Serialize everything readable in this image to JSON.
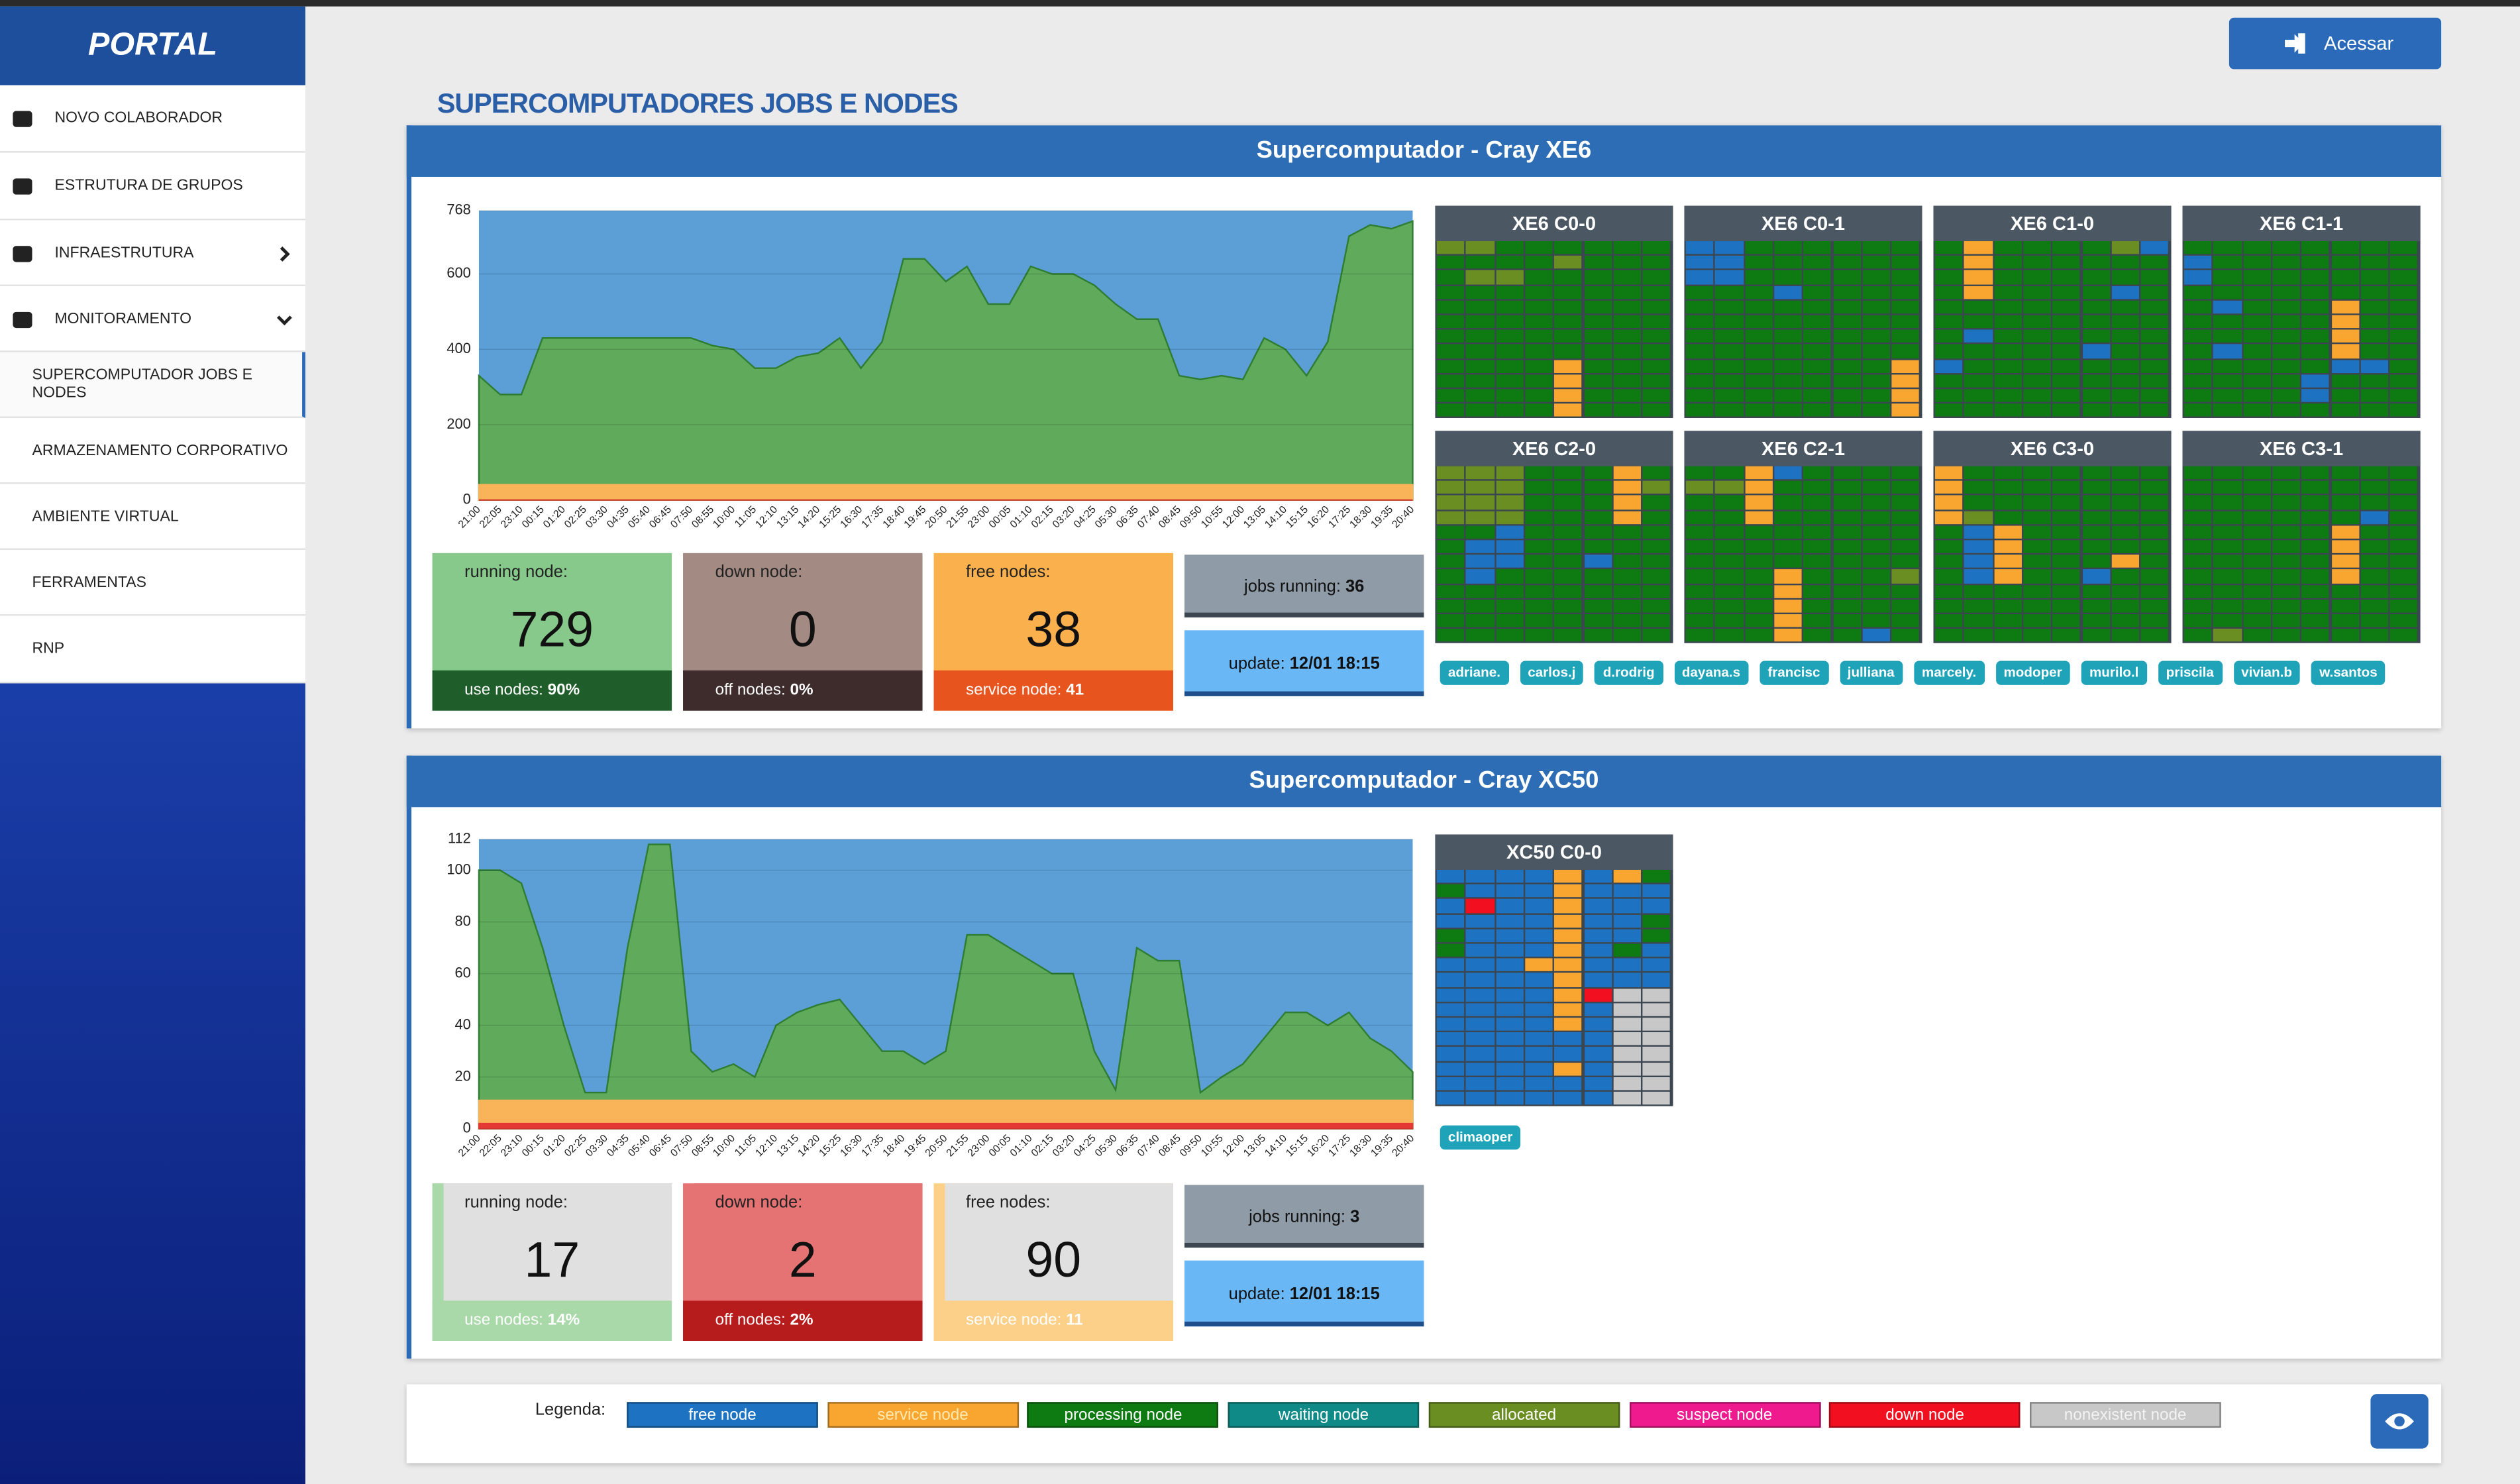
{
  "sidebar": {
    "brand": "PORTAL",
    "menu": [
      "NOVO COLABORADOR",
      "ESTRUTURA DE GRUPOS",
      "INFRAESTRUTURA",
      "MONITORAMENTO",
      "SUPERCOMPUTADOR JOBS E NODES",
      "ARMAZENAMENTO CORPORATIVO",
      "AMBIENTE VIRTUAL",
      "FERRAMENTAS",
      "RNP"
    ]
  },
  "header": {
    "button": "Acessar"
  },
  "page_title": "SUPERCOMPUTADORES JOBS E NODES",
  "panels": [
    {
      "title": "Supercomputador - Cray XE6",
      "chart": {
        "type": "area",
        "categories": [
          "21:00",
          "22:05",
          "23:10",
          "00:15",
          "01:20",
          "02:25",
          "03:30",
          "04:35",
          "05:40",
          "06:45",
          "07:50",
          "08:55",
          "10:00",
          "11:05",
          "12:10",
          "13:15",
          "14:20",
          "15:25",
          "16:30",
          "17:35",
          "18:40",
          "19:45",
          "20:50",
          "21:55",
          "23:00",
          "00:05",
          "01:10",
          "02:15",
          "03:20",
          "04:25",
          "05:30",
          "06:35",
          "07:40",
          "08:45",
          "09:50",
          "10:55",
          "12:00",
          "13:05",
          "14:10",
          "15:15",
          "16:20",
          "17:25",
          "18:30",
          "19:35",
          "20:40"
        ],
        "series": [
          {
            "color": "#5faa5b",
            "values": [
              330,
              280,
              280,
              430,
              430,
              430,
              430,
              430,
              430,
              430,
              430,
              410,
              400,
              350,
              350,
              380,
              390,
              430,
              350,
              420,
              640,
              640,
              580,
              620,
              520,
              520,
              620,
              600,
              600,
              570,
              520,
              480,
              480,
              330,
              320,
              330,
              320,
              430,
              400,
              330,
              420,
              700,
              730,
              720,
              740
            ]
          },
          {
            "color": "#f9b45a",
            "values": [
              41,
              41,
              41,
              41,
              41,
              41,
              41,
              41,
              41,
              41,
              41,
              41,
              41,
              41,
              41,
              41,
              41,
              41,
              41,
              41,
              41,
              41,
              41,
              41,
              41,
              41,
              41,
              41,
              41,
              41,
              41,
              41,
              41,
              41,
              41,
              41,
              41,
              41,
              41,
              41,
              41,
              41,
              41,
              41,
              41
            ]
          },
          {
            "color": "#e53935",
            "values": [
              0,
              0,
              0,
              0,
              0,
              0,
              0,
              0,
              0,
              0,
              0,
              0,
              0,
              0,
              0,
              0,
              0,
              0,
              0,
              0,
              0,
              0,
              0,
              0,
              0,
              0,
              0,
              0,
              0,
              0,
              0,
              0,
              0,
              0,
              0,
              0,
              0,
              0,
              0,
              0,
              0,
              0,
              0,
              0,
              0
            ]
          }
        ],
        "ylim": [
          0,
          768
        ],
        "yticks": [
          0,
          200,
          400,
          600,
          768
        ],
        "grid": true
      },
      "cards": [
        {
          "label": "running node:",
          "value": "729",
          "footer_label": "use nodes:",
          "footer_value": "90%"
        },
        {
          "label": "down node:",
          "value": "0",
          "footer_label": "off nodes:",
          "footer_value": "0%"
        },
        {
          "label": "free nodes:",
          "value": "38",
          "footer_label": "service node:",
          "footer_value": "41"
        }
      ],
      "jobs": {
        "label": "jobs running:",
        "value": "36"
      },
      "update": {
        "label": "update:",
        "value": "12/01 18:15"
      },
      "grids": [
        "XE6 C0-0",
        "XE6 C0-1",
        "XE6 C1-0",
        "XE6 C1-1",
        "XE6 C2-0",
        "XE6 C2-1",
        "XE6 C3-0",
        "XE6 C3-1"
      ],
      "users": [
        "adriane.",
        "carlos.j",
        "d.rodrig",
        "dayana.s",
        "francisc",
        "julliana",
        "marcely.",
        "modoper",
        "murilo.l",
        "priscila",
        "vivian.b",
        "w.santos"
      ]
    },
    {
      "title": "Supercomputador - Cray XC50",
      "chart": {
        "type": "area",
        "categories": [
          "21:00",
          "22:05",
          "23:10",
          "00:15",
          "01:20",
          "02:25",
          "03:30",
          "04:35",
          "05:40",
          "06:45",
          "07:50",
          "08:55",
          "10:00",
          "11:05",
          "12:10",
          "13:15",
          "14:20",
          "15:25",
          "16:30",
          "17:35",
          "18:40",
          "19:45",
          "20:50",
          "21:55",
          "23:00",
          "00:05",
          "01:10",
          "02:15",
          "03:20",
          "04:25",
          "05:30",
          "06:35",
          "07:40",
          "08:45",
          "09:50",
          "10:55",
          "12:00",
          "13:05",
          "14:10",
          "15:15",
          "16:20",
          "17:25",
          "18:30",
          "19:35",
          "20:40"
        ],
        "series": [
          {
            "color": "#5faa5b",
            "values": [
              100,
              100,
              95,
              70,
              40,
              14,
              14,
              70,
              110,
              110,
              30,
              22,
              25,
              20,
              40,
              45,
              48,
              50,
              40,
              30,
              30,
              25,
              30,
              75,
              75,
              70,
              65,
              60,
              60,
              30,
              15,
              70,
              65,
              65,
              14,
              20,
              25,
              35,
              45,
              45,
              40,
              45,
              35,
              30,
              22
            ]
          },
          {
            "color": "#f9b45a",
            "values": [
              11,
              11,
              11,
              11,
              11,
              11,
              11,
              11,
              11,
              11,
              11,
              11,
              11,
              11,
              11,
              11,
              11,
              11,
              11,
              11,
              11,
              11,
              11,
              11,
              11,
              11,
              11,
              11,
              11,
              11,
              11,
              11,
              11,
              11,
              11,
              11,
              11,
              11,
              11,
              11,
              11,
              11,
              11,
              11,
              11
            ]
          },
          {
            "color": "#e53935",
            "values": [
              2,
              2,
              2,
              2,
              2,
              2,
              2,
              2,
              2,
              2,
              2,
              2,
              2,
              2,
              2,
              2,
              2,
              2,
              2,
              2,
              2,
              2,
              2,
              2,
              2,
              2,
              2,
              2,
              2,
              2,
              2,
              2,
              2,
              2,
              2,
              2,
              2,
              2,
              2,
              2,
              2,
              2,
              2,
              2,
              2
            ]
          }
        ],
        "ylim": [
          0,
          112
        ],
        "yticks": [
          0,
          20,
          40,
          60,
          80,
          100,
          112
        ],
        "grid": true
      },
      "cards": [
        {
          "label": "running node:",
          "value": "17",
          "footer_label": "use nodes:",
          "footer_value": "14%"
        },
        {
          "label": "down node:",
          "value": "2",
          "footer_label": "off nodes:",
          "footer_value": "2%"
        },
        {
          "label": "free nodes:",
          "value": "90",
          "footer_label": "service node:",
          "footer_value": "11"
        }
      ],
      "jobs": {
        "label": "jobs running:",
        "value": "3"
      },
      "update": {
        "label": "update:",
        "value": "12/01 18:15"
      },
      "grids": [
        "XC50 C0-0"
      ],
      "users": [
        "climaoper"
      ]
    }
  ],
  "legend": {
    "label": "Legenda:",
    "items": [
      {
        "name": "free node",
        "color": "#1d73c2"
      },
      {
        "name": "service node",
        "color": "#f9a630"
      },
      {
        "name": "processing node",
        "color": "#0e7a12"
      },
      {
        "name": "waiting node",
        "color": "#108a86"
      },
      {
        "name": "allocated",
        "color": "#6b8e23"
      },
      {
        "name": "suspect node",
        "color": "#f01a8f"
      },
      {
        "name": "down node",
        "color": "#f20f1f"
      },
      {
        "name": "nonexistent node",
        "color": "#c8c8c8"
      }
    ]
  }
}
